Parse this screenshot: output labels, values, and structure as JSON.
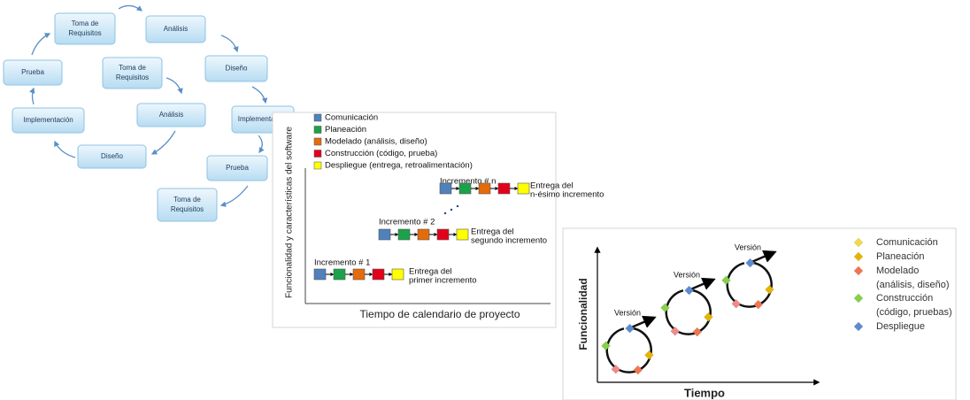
{
  "spiral_diagram": {
    "nodes": [
      {
        "label": [
          "Toma de",
          "Requisitos"
        ]
      },
      {
        "label": [
          "Análisis"
        ]
      },
      {
        "label": [
          "Diseño"
        ]
      },
      {
        "label": [
          "Implementación"
        ]
      },
      {
        "label": [
          "Prueba"
        ]
      },
      {
        "label": [
          "Toma de",
          "Requisitos"
        ]
      },
      {
        "label": [
          "Diseño"
        ]
      },
      {
        "label": [
          "Implementación"
        ]
      },
      {
        "label": [
          "Prueba"
        ]
      },
      {
        "label": [
          "Toma de",
          "Requisitos"
        ]
      },
      {
        "label": [
          "Análisis"
        ]
      }
    ]
  },
  "incremental_model": {
    "legend": [
      "Comunicación",
      "Planeación",
      "Modelado (análisis, diseño)",
      "Construcción (código, prueba)",
      "Despliegue (entrega, retroalimentación)"
    ],
    "y_axis_label": "Funcionalidad y características del software",
    "x_axis_label": "Tiempo de calendario de proyecto",
    "increments": [
      {
        "label": "Incremento # 1",
        "delivery": [
          "Entrega del",
          "primer incremento"
        ]
      },
      {
        "label": "Incremento # 2",
        "delivery": [
          "Entrega del",
          "segundo incremento"
        ]
      },
      {
        "label": "Incremento # n",
        "delivery": [
          "Entrega del",
          "n-ésimo incremento"
        ]
      }
    ]
  },
  "versions_model": {
    "legend": [
      [
        "Comunicación"
      ],
      [
        "Planeación"
      ],
      [
        "Modelado",
        "(análisis, diseño)"
      ],
      [
        "Construcción",
        "(código, pruebas)"
      ],
      [
        "Despliegue"
      ]
    ],
    "versions": [
      "Versión",
      "Versión",
      "Versión"
    ],
    "y_axis_label": "Funcionalidad",
    "x_axis_label": "Tiempo"
  }
}
